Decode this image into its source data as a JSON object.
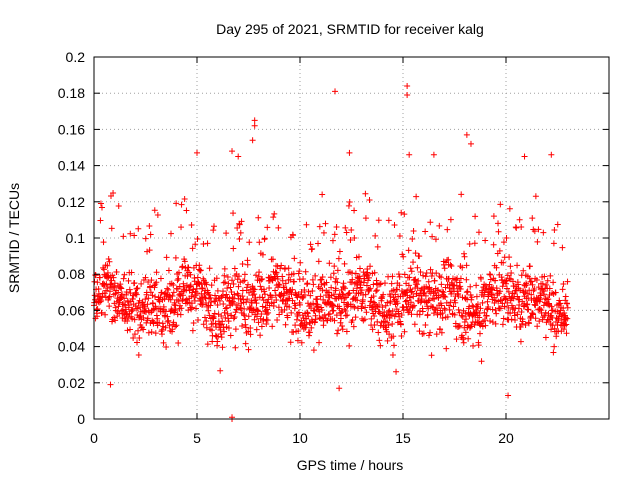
{
  "chart_data": {
    "type": "scatter",
    "title": "Day 295 of 2021, SRMTID for receiver kalg",
    "xlabel": "GPS time / hours",
    "ylabel": "SRMTID / TECUs",
    "xlim": [
      0,
      25
    ],
    "ylim": [
      0,
      0.2
    ],
    "grid": true,
    "marker": "+",
    "color": "#ff0000",
    "x_ticks": [
      0,
      5,
      10,
      15,
      20
    ],
    "x_tick_labels": [
      "0",
      "5",
      "10",
      "15",
      "20"
    ],
    "y_ticks": [
      0,
      0.02,
      0.04,
      0.06,
      0.08,
      0.1,
      0.12,
      0.14,
      0.16,
      0.18,
      0.2
    ],
    "y_tick_labels": [
      "0",
      "0.02",
      "0.04",
      "0.06",
      "0.08",
      "0.1",
      "0.12",
      "0.14",
      "0.16",
      "0.18",
      "0.2"
    ],
    "series": [
      {
        "name": "SRMTID",
        "note": "dense cloud of ~2000 points sampled between 0 and ~23 h; mostly 0.02–0.10 TECU",
        "x_range": [
          0.0,
          23.0
        ],
        "typical_range": [
          0.02,
          0.11
        ],
        "notable_points": [
          {
            "x": 15.2,
            "y": 0.184
          },
          {
            "x": 15.2,
            "y": 0.179
          },
          {
            "x": 11.7,
            "y": 0.181
          },
          {
            "x": 7.8,
            "y": 0.165
          },
          {
            "x": 7.8,
            "y": 0.162
          },
          {
            "x": 18.1,
            "y": 0.157
          },
          {
            "x": 18.3,
            "y": 0.152
          },
          {
            "x": 7.7,
            "y": 0.154
          },
          {
            "x": 5.0,
            "y": 0.147
          },
          {
            "x": 12.4,
            "y": 0.147
          },
          {
            "x": 22.2,
            "y": 0.146
          },
          {
            "x": 16.5,
            "y": 0.146
          },
          {
            "x": 15.3,
            "y": 0.146
          },
          {
            "x": 20.9,
            "y": 0.145
          },
          {
            "x": 6.7,
            "y": 0.148
          },
          {
            "x": 7.0,
            "y": 0.145
          },
          {
            "x": 20.1,
            "y": 0.013
          },
          {
            "x": 0.8,
            "y": 0.019
          },
          {
            "x": 11.9,
            "y": 0.017
          },
          {
            "x": 6.7,
            "y": 0.0
          },
          {
            "x": 6.7,
            "y": 0.001
          }
        ]
      }
    ]
  }
}
